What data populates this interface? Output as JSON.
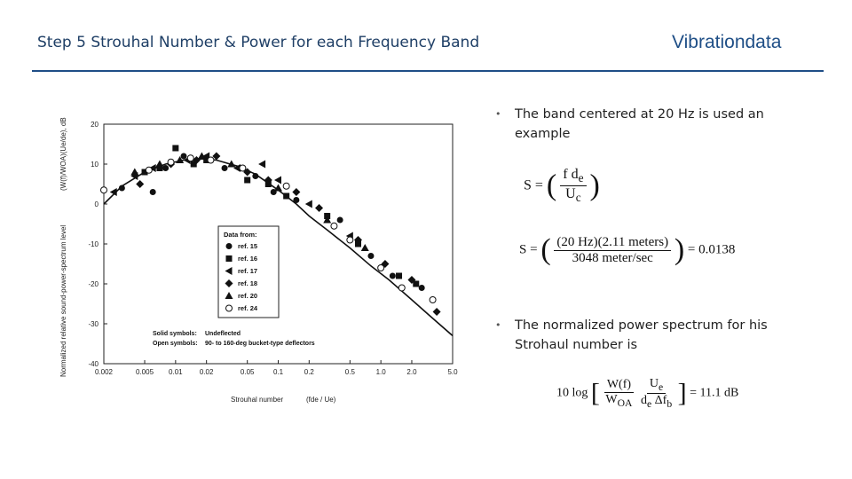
{
  "header": {
    "title": "Step 5   Strouhal Number & Power for each Frequency Band",
    "brand": "Vibrationdata",
    "rule_color": "#1f4e87"
  },
  "bullets": [
    {
      "text_line1": "The band centered at 20 Hz is used an",
      "text_line2": "example"
    },
    {
      "text_line1": "The normalized power spectrum for his",
      "text_line2": "Strohaul number is"
    }
  ],
  "equations": {
    "eq1": {
      "lhs": "S =",
      "num": "f d",
      "num_sub": "e",
      "den": "U",
      "den_sub": "c"
    },
    "eq2": {
      "lhs": "S =",
      "num_a": "20 Hz",
      "num_b": "2.11 meters",
      "den": "3048 meter/sec",
      "result": "= 0.0138"
    },
    "eq3": {
      "prefix": "10 log",
      "num1": "W(f)",
      "den1": "W",
      "den1_sub": "OA",
      "num2": "U",
      "num2_sub": "e",
      "den2": "d",
      "den2_sub": "e",
      "den2b": " Δf",
      "den2b_sub": "b",
      "result": "= 11.1 dB"
    }
  },
  "chart_data": {
    "type": "scatter",
    "x_scale": "log",
    "xlim": [
      0.002,
      5.0
    ],
    "ylim": [
      -40,
      20
    ],
    "x_ticks": [
      "0.002",
      "0.005",
      "0.01",
      "0.02",
      "0.05",
      "0.1",
      "0.2",
      "0.5",
      "1.0",
      "2.0",
      "5.0"
    ],
    "x_tick_values": [
      0.002,
      0.005,
      0.01,
      0.02,
      0.05,
      0.1,
      0.2,
      0.5,
      1.0,
      2.0,
      5.0
    ],
    "y_ticks": [
      "20",
      "10",
      "0",
      "-10",
      "-20",
      "-30",
      "-40"
    ],
    "y_tick_values": [
      20,
      10,
      0,
      -10,
      -20,
      -30,
      -40
    ],
    "xlabel": "Strouhal number",
    "ylabel": "Normalized relative sound-power-spectrum level",
    "legend": {
      "title": "Data from:",
      "entries": [
        {
          "marker": "circle",
          "label": "ref. 15"
        },
        {
          "marker": "square",
          "label": "ref. 16"
        },
        {
          "marker": "left-triangle",
          "label": "ref. 17"
        },
        {
          "marker": "diamond",
          "label": "ref. 18"
        },
        {
          "marker": "triangle",
          "label": "ref. 20"
        },
        {
          "marker": "circle-open",
          "label": "ref. 24"
        }
      ],
      "note1_label": "Solid symbols:",
      "note1_text": "Undeflected",
      "note2_label": "Open symbols:",
      "note2_text": "90- to 160-deg bucket-type deflectors"
    },
    "curve": {
      "x": [
        0.002,
        0.003,
        0.005,
        0.008,
        0.012,
        0.018,
        0.025,
        0.04,
        0.06,
        0.1,
        0.15,
        0.2,
        0.3,
        0.5,
        0.8,
        1.2,
        2.0,
        3.0,
        5.0
      ],
      "y": [
        0,
        4.5,
        8,
        10,
        11,
        11.3,
        11,
        9.5,
        7.5,
        3.5,
        0,
        -3,
        -6.5,
        -11,
        -15.5,
        -19,
        -24,
        -28,
        -33
      ]
    },
    "series": [
      {
        "marker": "circle",
        "points": [
          [
            0.003,
            4
          ],
          [
            0.006,
            3
          ],
          [
            0.008,
            9
          ],
          [
            0.012,
            12
          ],
          [
            0.03,
            9
          ],
          [
            0.06,
            7
          ],
          [
            0.09,
            3
          ],
          [
            0.15,
            1
          ],
          [
            0.4,
            -4
          ],
          [
            0.8,
            -13
          ],
          [
            1.3,
            -18
          ],
          [
            2.5,
            -21
          ]
        ]
      },
      {
        "marker": "square",
        "points": [
          [
            0.005,
            8
          ],
          [
            0.007,
            9
          ],
          [
            0.01,
            14
          ],
          [
            0.015,
            10
          ],
          [
            0.02,
            11
          ],
          [
            0.05,
            6
          ],
          [
            0.08,
            5
          ],
          [
            0.12,
            2
          ],
          [
            0.3,
            -3
          ],
          [
            0.6,
            -10
          ],
          [
            1.5,
            -18
          ],
          [
            2.2,
            -20
          ]
        ]
      },
      {
        "marker": "left-triangle",
        "points": [
          [
            0.0025,
            3
          ],
          [
            0.004,
            7
          ],
          [
            0.006,
            9
          ],
          [
            0.013,
            11
          ],
          [
            0.02,
            12
          ],
          [
            0.04,
            9
          ],
          [
            0.07,
            10
          ],
          [
            0.1,
            6
          ],
          [
            0.2,
            0
          ],
          [
            0.5,
            -8
          ]
        ]
      },
      {
        "marker": "diamond",
        "points": [
          [
            0.0045,
            5
          ],
          [
            0.009,
            10
          ],
          [
            0.016,
            11
          ],
          [
            0.025,
            12
          ],
          [
            0.05,
            8
          ],
          [
            0.08,
            6
          ],
          [
            0.15,
            3
          ],
          [
            0.25,
            -1
          ],
          [
            0.6,
            -9
          ],
          [
            1.1,
            -15
          ],
          [
            2.0,
            -19
          ],
          [
            3.5,
            -27
          ]
        ]
      },
      {
        "marker": "triangle",
        "points": [
          [
            0.004,
            8
          ],
          [
            0.007,
            10
          ],
          [
            0.011,
            11
          ],
          [
            0.018,
            12
          ],
          [
            0.035,
            10
          ],
          [
            0.1,
            4
          ],
          [
            0.3,
            -4
          ],
          [
            0.7,
            -11
          ]
        ]
      },
      {
        "marker": "circle-open",
        "points": [
          [
            0.002,
            3.5
          ],
          [
            0.0055,
            8.5
          ],
          [
            0.009,
            10.5
          ],
          [
            0.014,
            11.5
          ],
          [
            0.022,
            11
          ],
          [
            0.045,
            9
          ],
          [
            0.12,
            4.5
          ],
          [
            0.35,
            -5.5
          ],
          [
            0.5,
            -9
          ],
          [
            1.0,
            -16
          ],
          [
            1.6,
            -21
          ],
          [
            3.2,
            -24
          ]
        ]
      }
    ]
  }
}
